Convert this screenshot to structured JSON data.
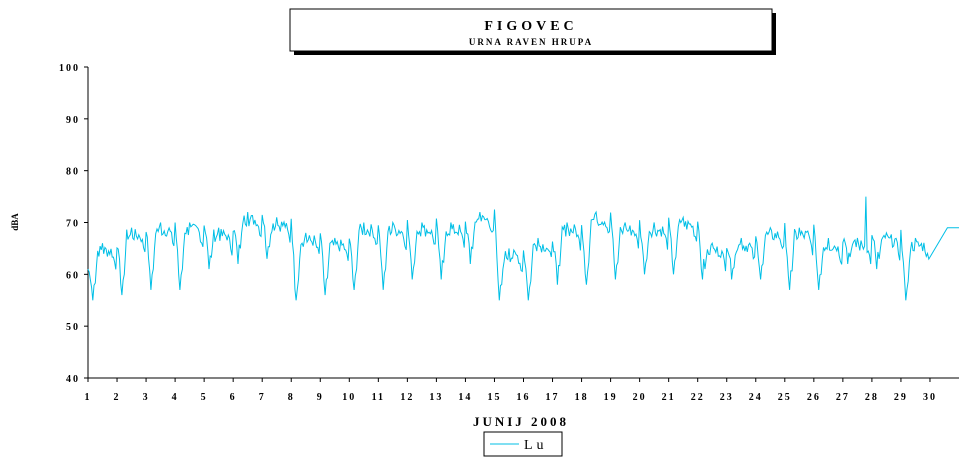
{
  "chart_data": {
    "type": "line",
    "title": "FIGOVEC",
    "subtitle": "URNA RAVEN HRUPA",
    "xlabel": "JUNIJ 2008",
    "ylabel": "dBA",
    "xlim": [
      1,
      31
    ],
    "ylim": [
      40,
      100
    ],
    "yticks": [
      40,
      50,
      60,
      70,
      80,
      90,
      100
    ],
    "xticks": [
      1,
      2,
      3,
      4,
      5,
      6,
      7,
      8,
      9,
      10,
      11,
      12,
      13,
      14,
      15,
      16,
      17,
      18,
      19,
      20,
      21,
      22,
      23,
      24,
      25,
      26,
      27,
      28,
      29,
      30
    ],
    "grid": false,
    "legend": "bottom-center",
    "series": [
      {
        "name": "Lu",
        "color": "#00bfe6",
        "daily_min": [
          55,
          56,
          57,
          57,
          61,
          62,
          63,
          55,
          56,
          57,
          57,
          59,
          59,
          62,
          55,
          55,
          58,
          58,
          59,
          60,
          60,
          59,
          59,
          59,
          57,
          57,
          62,
          61,
          55
        ],
        "daily_max": [
          66,
          69,
          70,
          70,
          69,
          72,
          71,
          68,
          67,
          70,
          70,
          70,
          70,
          72,
          65,
          67,
          70,
          72,
          70,
          70,
          71,
          66,
          67,
          69,
          69,
          67,
          67,
          68,
          67
        ],
        "start_value": 61,
        "end_value": 69,
        "peaks": [
          {
            "x": 27.8,
            "y": 75
          }
        ]
      }
    ]
  }
}
